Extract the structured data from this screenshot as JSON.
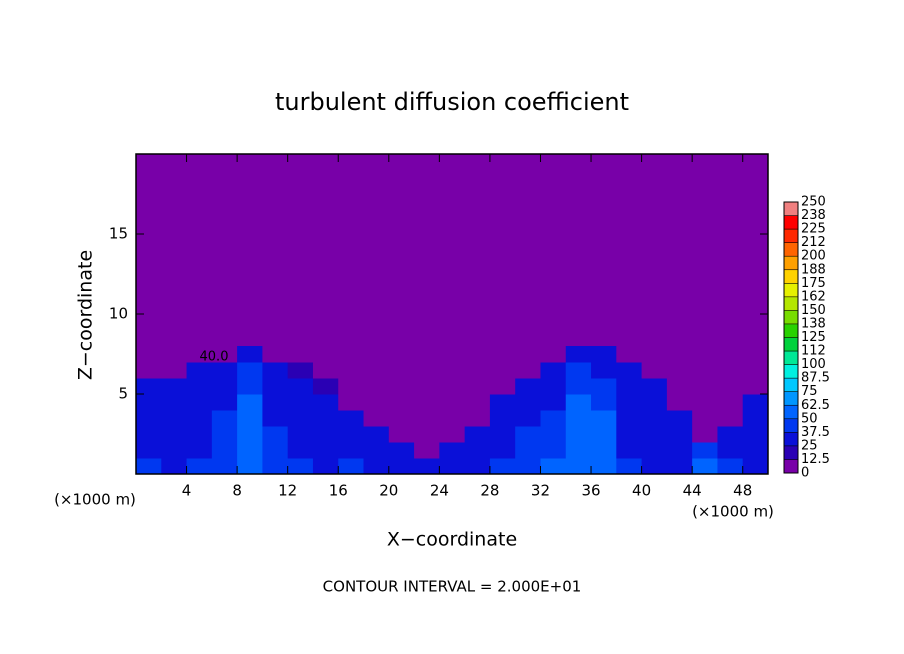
{
  "chart_data": {
    "type": "heatmap",
    "title": "turbulent diffusion coefficient",
    "x_label": "X−coordinate",
    "y_label": "Z−coordinate",
    "x_unit": "(×1000 m)",
    "x_unit_right": "(×1000 m)",
    "footnote": "CONTOUR INTERVAL = 2.000E+01",
    "annotation": "40.0",
    "xlim": [
      0,
      50
    ],
    "ylim": [
      0,
      20
    ],
    "xticks": [
      4,
      8,
      12,
      16,
      20,
      24,
      28,
      32,
      36,
      40,
      44,
      48
    ],
    "yticks": [
      5,
      10,
      15
    ],
    "x": [
      1,
      3,
      5,
      7,
      9,
      11,
      13,
      15,
      17,
      19,
      21,
      23,
      25,
      27,
      29,
      31,
      33,
      35,
      37,
      39,
      41,
      43,
      45,
      47,
      49
    ],
    "z": [
      0.5,
      1.5,
      2.5,
      3.5,
      4.5,
      5.5,
      6.5,
      7.5
    ],
    "values": [
      [
        40,
        35,
        40,
        45,
        60,
        45,
        40,
        35,
        40,
        35,
        30,
        30,
        30,
        35,
        40,
        45,
        50,
        60,
        55,
        40,
        35,
        35,
        50,
        40,
        35
      ],
      [
        35,
        30,
        35,
        45,
        55,
        40,
        35,
        30,
        35,
        30,
        25,
        0,
        25,
        30,
        35,
        40,
        45,
        60,
        55,
        35,
        30,
        30,
        40,
        35,
        30
      ],
      [
        30,
        30,
        35,
        40,
        55,
        40,
        35,
        30,
        30,
        25,
        0,
        0,
        0,
        30,
        35,
        40,
        45,
        55,
        50,
        35,
        30,
        30,
        0,
        30,
        30
      ],
      [
        30,
        30,
        30,
        40,
        50,
        35,
        30,
        30,
        25,
        0,
        0,
        0,
        0,
        0,
        30,
        35,
        40,
        55,
        50,
        35,
        30,
        25,
        0,
        0,
        30
      ],
      [
        30,
        25,
        30,
        35,
        50,
        35,
        30,
        25,
        0,
        0,
        0,
        0,
        0,
        0,
        25,
        30,
        35,
        50,
        45,
        30,
        30,
        0,
        0,
        0,
        25
      ],
      [
        25,
        25,
        30,
        35,
        45,
        30,
        30,
        20,
        0,
        0,
        0,
        0,
        0,
        0,
        0,
        30,
        35,
        45,
        40,
        30,
        25,
        0,
        0,
        0,
        0
      ],
      [
        0,
        0,
        25,
        30,
        40,
        30,
        20,
        0,
        0,
        0,
        0,
        0,
        0,
        0,
        0,
        0,
        30,
        40,
        35,
        25,
        0,
        0,
        0,
        0,
        0
      ],
      [
        0,
        0,
        0,
        0,
        30,
        0,
        0,
        0,
        0,
        0,
        0,
        0,
        0,
        0,
        0,
        0,
        0,
        30,
        30,
        0,
        0,
        0,
        0,
        0,
        0
      ]
    ],
    "colorbar_ticks": [
      0,
      12.5,
      25,
      37.5,
      50,
      62.5,
      75,
      87.5,
      100,
      {
        "value": 112.5,
        "label": "112"
      },
      125,
      {
        "value": 137.5,
        "label": "138"
      },
      150,
      {
        "value": 162.5,
        "label": "162"
      },
      175,
      {
        "value": 187.5,
        "label": "188"
      },
      200,
      {
        "value": 212.5,
        "label": "212"
      },
      225,
      {
        "value": 237.5,
        "label": "238"
      },
      250
    ],
    "colors": [
      "#7800a8",
      "#2a00b4",
      "#0a10d8",
      "#0038f0",
      "#0064ff",
      "#0096ff",
      "#00c8ff",
      "#00f0e0",
      "#00e896",
      "#00d23c",
      "#28d200",
      "#78dc00",
      "#b4e600",
      "#e6f000",
      "#ffd200",
      "#ffa000",
      "#ff6400",
      "#ff2800",
      "#ff0000",
      "#f08080"
    ]
  }
}
